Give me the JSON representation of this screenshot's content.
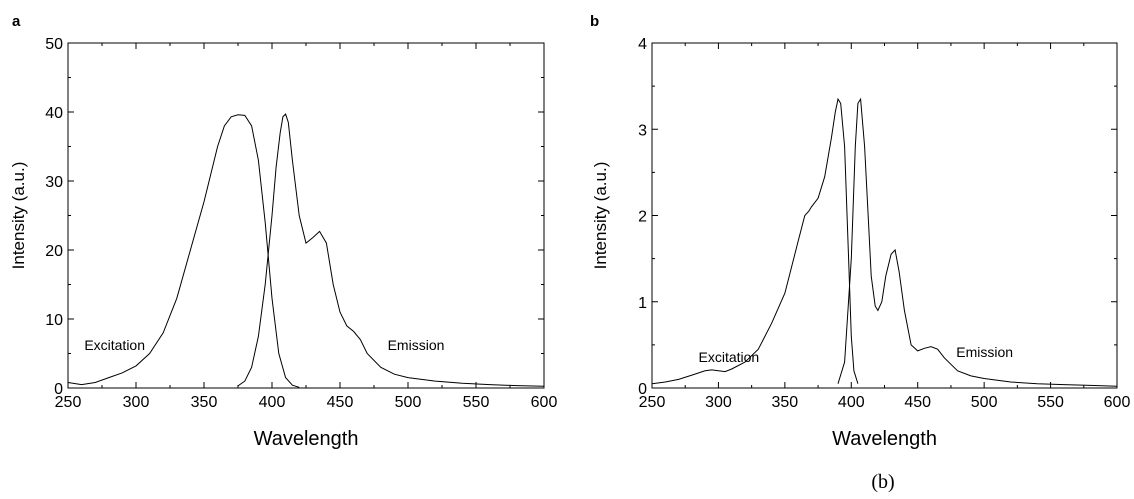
{
  "chart_data": [
    {
      "panel": "a",
      "type": "line",
      "xlabel": "Wavelength",
      "ylabel": "Intensity (a.u.)",
      "xlim": [
        250,
        600
      ],
      "ylim": [
        0,
        50
      ],
      "xticks": [
        250,
        300,
        350,
        400,
        450,
        500,
        550,
        600
      ],
      "yticks": [
        0,
        10,
        20,
        30,
        40,
        50
      ],
      "grid": false,
      "annotations": [
        {
          "text": "Excitation",
          "x": 262,
          "y": 5.5
        },
        {
          "text": "Emission",
          "x": 485,
          "y": 5.5
        }
      ],
      "series": [
        {
          "x": [
            250,
            260,
            270,
            280,
            290,
            300,
            310,
            320,
            330,
            340,
            350,
            355,
            360,
            365,
            370,
            375,
            380,
            385,
            390,
            395,
            400,
            405,
            410,
            415,
            420
          ],
          "y": [
            0.8,
            0.5,
            0.8,
            1.5,
            2.2,
            3.2,
            5.0,
            8.0,
            13.0,
            20.0,
            27.0,
            31.0,
            35.0,
            38.0,
            39.3,
            39.6,
            39.5,
            38.0,
            33.0,
            24.0,
            13.0,
            5.0,
            1.5,
            0.4,
            0.1
          ]
        },
        {
          "x": [
            375,
            380,
            385,
            390,
            395,
            400,
            403,
            406,
            408,
            410,
            412,
            415,
            420,
            425,
            430,
            435,
            440,
            445,
            450,
            455,
            460,
            465,
            470,
            480,
            490,
            500,
            520,
            540,
            560,
            580,
            600
          ],
          "y": [
            0.3,
            1.0,
            3.0,
            7.5,
            15.0,
            25.0,
            32.0,
            37.0,
            39.3,
            39.7,
            38.5,
            33.0,
            25.0,
            21.0,
            21.8,
            22.7,
            21.0,
            15.0,
            11.0,
            9.0,
            8.2,
            7.0,
            5.0,
            3.0,
            2.0,
            1.5,
            1.0,
            0.7,
            0.5,
            0.35,
            0.25
          ]
        }
      ]
    },
    {
      "panel": "b",
      "type": "line",
      "xlabel": "Wavelength",
      "ylabel": "Intensity (a.u.)",
      "xlim": [
        250,
        600
      ],
      "ylim": [
        0,
        4
      ],
      "xticks": [
        250,
        300,
        350,
        400,
        450,
        500,
        550,
        600
      ],
      "yticks": [
        0,
        1,
        2,
        3,
        4
      ],
      "grid": false,
      "annotations": [
        {
          "text": "Excitation",
          "x": 285,
          "y": 0.3
        },
        {
          "text": "Emission",
          "x": 479,
          "y": 0.36
        }
      ],
      "series": [
        {
          "x": [
            250,
            260,
            270,
            280,
            290,
            295,
            300,
            305,
            310,
            320,
            330,
            340,
            350,
            355,
            360,
            365,
            368,
            370,
            375,
            380,
            385,
            388,
            390,
            392,
            395,
            398,
            400,
            402,
            405
          ],
          "y": [
            0.05,
            0.07,
            0.1,
            0.15,
            0.2,
            0.21,
            0.2,
            0.19,
            0.22,
            0.3,
            0.45,
            0.75,
            1.1,
            1.4,
            1.7,
            2.0,
            2.05,
            2.1,
            2.2,
            2.45,
            2.9,
            3.2,
            3.35,
            3.3,
            2.8,
            1.5,
            0.6,
            0.2,
            0.05
          ]
        },
        {
          "x": [
            390,
            395,
            400,
            403,
            405,
            407,
            410,
            413,
            415,
            418,
            420,
            423,
            426,
            430,
            433,
            436,
            440,
            445,
            450,
            455,
            460,
            465,
            470,
            480,
            490,
            500,
            520,
            540,
            560,
            580,
            600
          ],
          "y": [
            0.05,
            0.3,
            1.5,
            2.8,
            3.3,
            3.35,
            2.8,
            1.9,
            1.3,
            0.95,
            0.9,
            1.0,
            1.3,
            1.55,
            1.6,
            1.35,
            0.9,
            0.5,
            0.43,
            0.46,
            0.48,
            0.45,
            0.35,
            0.2,
            0.14,
            0.11,
            0.07,
            0.05,
            0.04,
            0.03,
            0.02
          ]
        }
      ]
    }
  ],
  "caption": "(b)"
}
